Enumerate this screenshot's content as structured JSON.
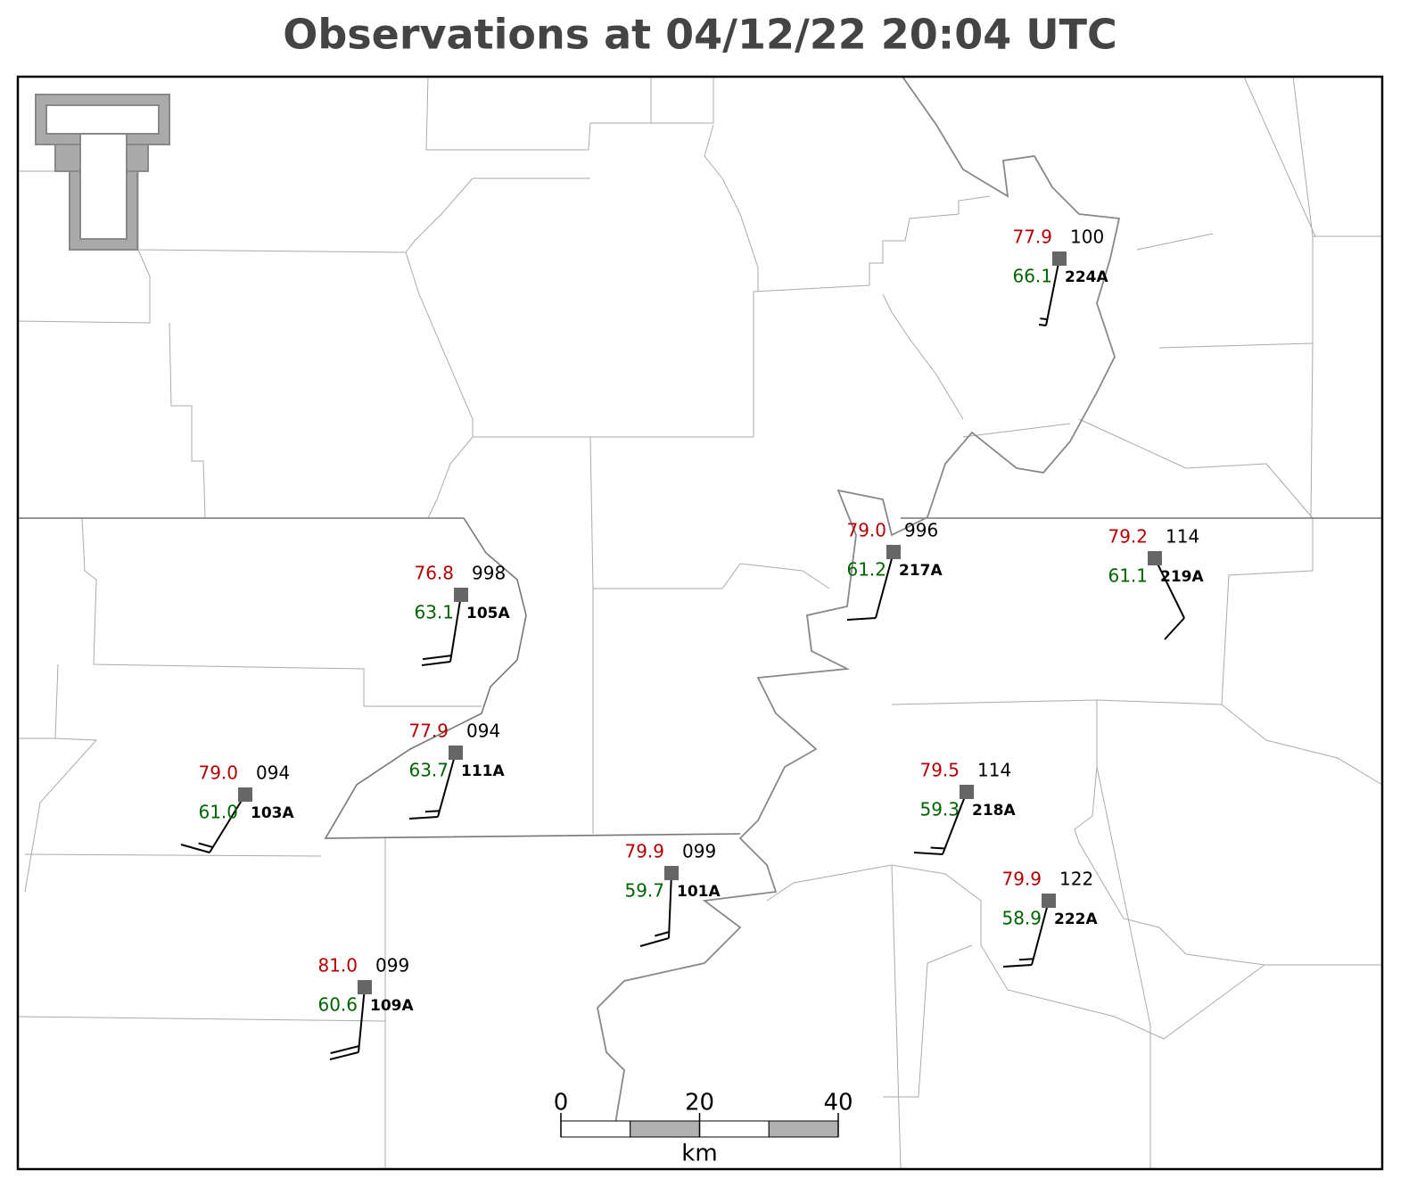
{
  "title": "Observations at 04/12/22 20:04 UTC",
  "stations": [
    {
      "id": "224A",
      "temperature": "77.9",
      "pressure": "100",
      "dewpoint": "66.1"
    },
    {
      "id": "217A",
      "temperature": "79.0",
      "pressure": "996",
      "dewpoint": "61.2"
    },
    {
      "id": "219A",
      "temperature": "79.2",
      "pressure": "114",
      "dewpoint": "61.1"
    },
    {
      "id": "105A",
      "temperature": "76.8",
      "pressure": "998",
      "dewpoint": "63.1"
    },
    {
      "id": "111A",
      "temperature": "77.9",
      "pressure": "094",
      "dewpoint": "63.7"
    },
    {
      "id": "103A",
      "temperature": "79.0",
      "pressure": "094",
      "dewpoint": "61.0"
    },
    {
      "id": "218A",
      "temperature": "79.5",
      "pressure": "114",
      "dewpoint": "59.3"
    },
    {
      "id": "101A",
      "temperature": "79.9",
      "pressure": "099",
      "dewpoint": "59.7"
    },
    {
      "id": "222A",
      "temperature": "79.9",
      "pressure": "122",
      "dewpoint": "58.9"
    },
    {
      "id": "109A",
      "temperature": "81.0",
      "pressure": "099",
      "dewpoint": "60.6"
    }
  ],
  "scale_bar": {
    "ticks": [
      0,
      20,
      40
    ],
    "unit": "km"
  }
}
